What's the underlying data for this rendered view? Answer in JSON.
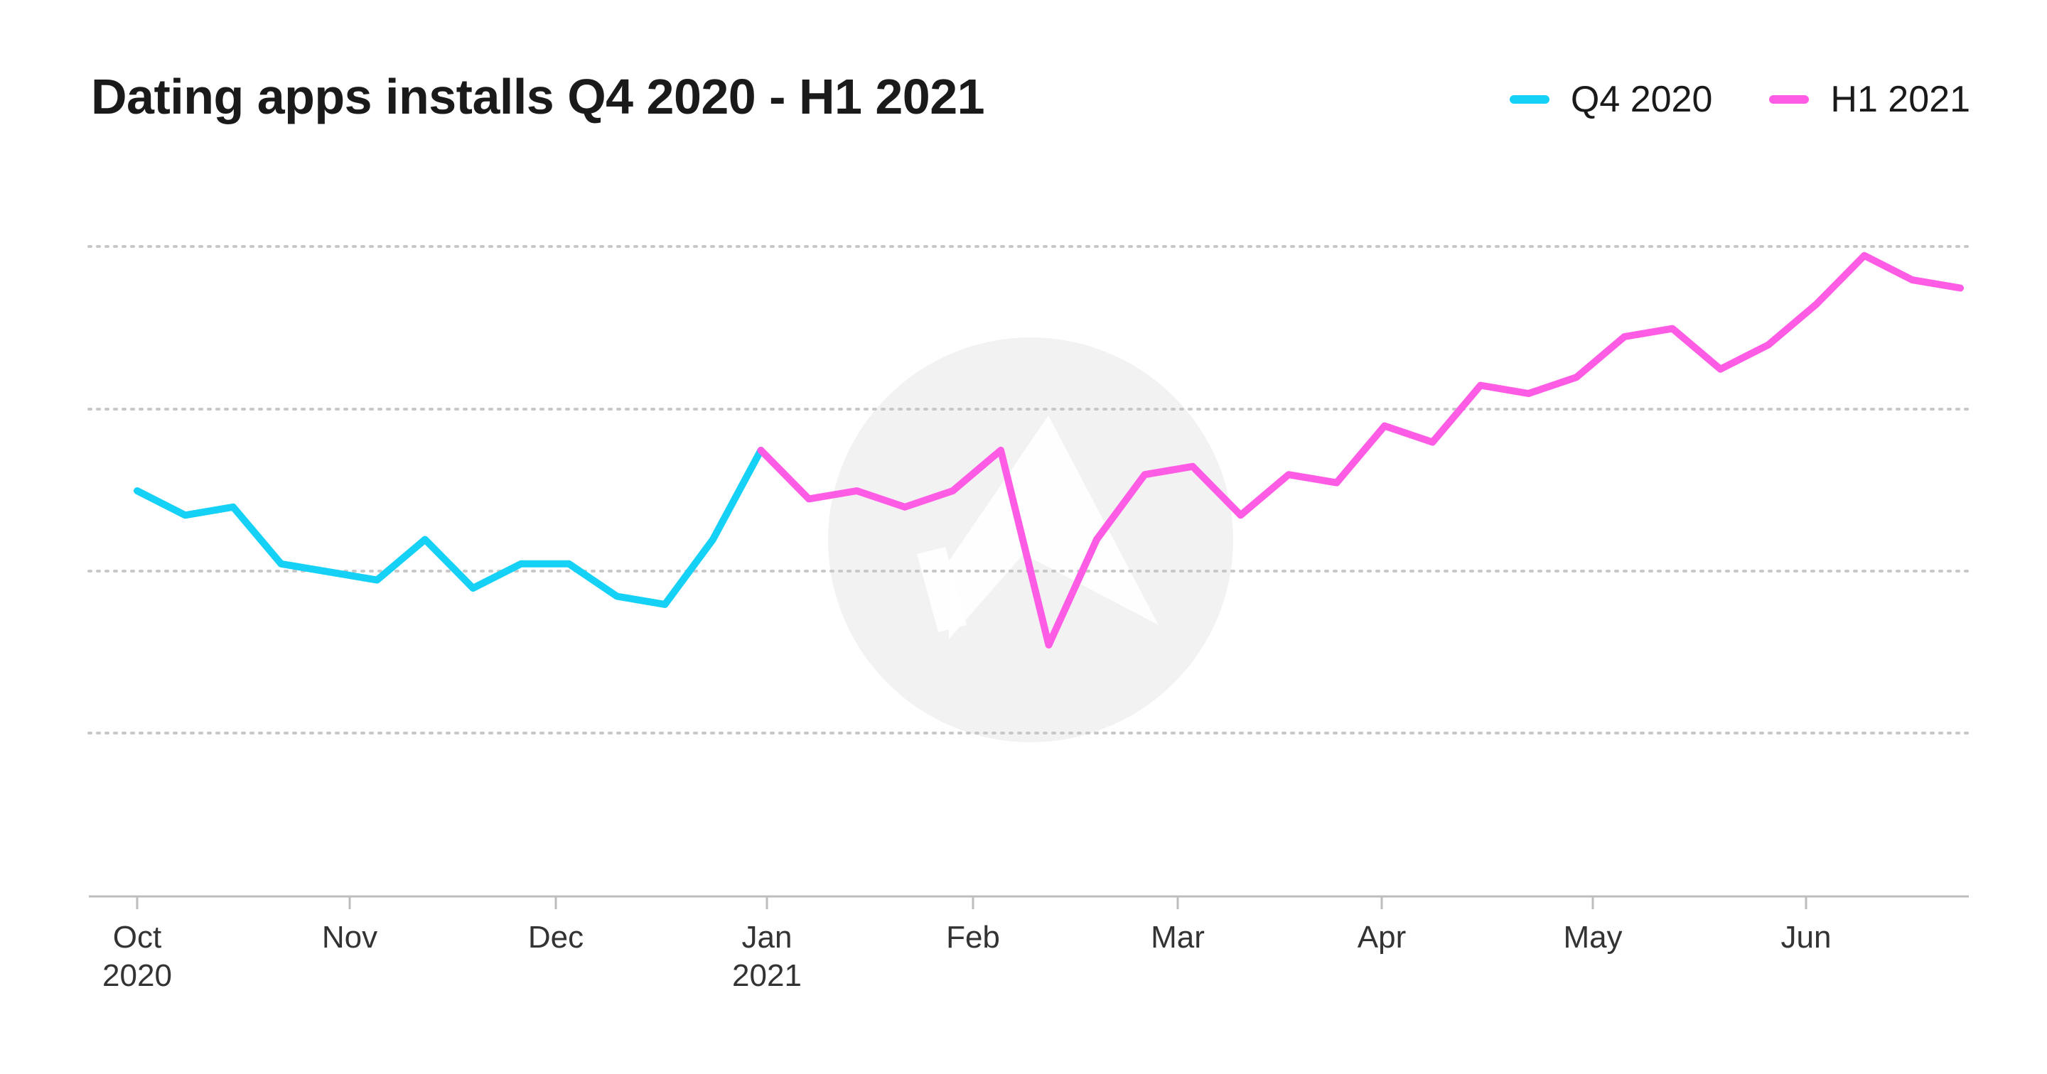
{
  "chart_data": {
    "type": "line",
    "title": "Dating apps installs Q4 2020 - H1 2021",
    "xlabel": "",
    "ylabel": "",
    "grid": true,
    "legend_position": "top-right",
    "x_ticks": [
      {
        "label": "Oct",
        "sublabel": "2020"
      },
      {
        "label": "Nov",
        "sublabel": ""
      },
      {
        "label": "Dec",
        "sublabel": ""
      },
      {
        "label": "Jan",
        "sublabel": "2021"
      },
      {
        "label": "Feb",
        "sublabel": ""
      },
      {
        "label": "Mar",
        "sublabel": ""
      },
      {
        "label": "Apr",
        "sublabel": ""
      },
      {
        "label": "May",
        "sublabel": ""
      },
      {
        "label": "Jun",
        "sublabel": ""
      }
    ],
    "series": [
      {
        "name": "Q4 2020",
        "color": "#14d1f5",
        "values": [
          50,
          47,
          48,
          41,
          40,
          39,
          44,
          38,
          41,
          41,
          37,
          36,
          44,
          55
        ]
      },
      {
        "name": "H1 2021",
        "color": "#ff5ce6",
        "values": [
          55,
          49,
          50,
          48,
          50,
          55,
          31,
          44,
          52,
          53,
          47,
          52,
          51,
          58,
          56,
          63,
          62,
          64,
          69,
          70,
          65,
          68,
          73,
          79,
          76,
          75
        ]
      }
    ]
  }
}
